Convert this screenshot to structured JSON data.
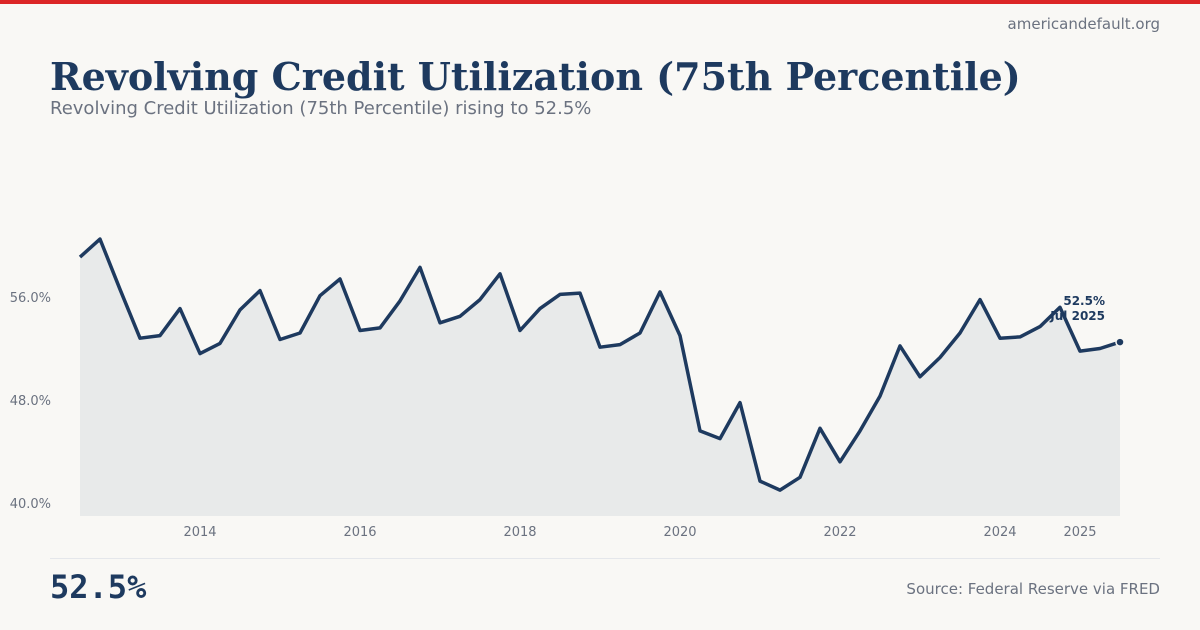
{
  "site": "americandefault.org",
  "title": "Revolving Credit Utilization (75th Percentile)",
  "subtitle": "Revolving Credit Utilization (75th Percentile) rising to 52.5%",
  "headline_value": "52.5%",
  "source": "Source: Federal Reserve via FRED",
  "colors": {
    "accent": "#dc2626",
    "line": "#1e3a5f",
    "fill": "#e8eaea"
  },
  "chart_data": {
    "type": "area",
    "ylim": [
      39,
      62
    ],
    "y_ticks": [
      {
        "value": 40,
        "label": "40.0%"
      },
      {
        "value": 48,
        "label": "48.0%"
      },
      {
        "value": 56,
        "label": "56.0%"
      }
    ],
    "x_ticks": [
      {
        "value": 2014,
        "label": "2014"
      },
      {
        "value": 2016,
        "label": "2016"
      },
      {
        "value": 2018,
        "label": "2018"
      },
      {
        "value": 2020,
        "label": "2020"
      },
      {
        "value": 2022,
        "label": "2022"
      },
      {
        "value": 2024,
        "label": "2024"
      },
      {
        "value": 2025,
        "label": "2025"
      }
    ],
    "x_start": 2012.5,
    "x_step": 0.25,
    "values": [
      59.1,
      60.5,
      56.6,
      52.8,
      53.0,
      55.1,
      51.6,
      52.4,
      55.0,
      56.5,
      52.7,
      53.2,
      56.1,
      57.4,
      53.4,
      53.6,
      55.7,
      58.3,
      54.0,
      54.5,
      55.8,
      57.8,
      53.4,
      55.1,
      56.2,
      56.3,
      52.1,
      52.3,
      53.2,
      56.4,
      53.0,
      45.6,
      45.0,
      47.8,
      41.7,
      41.0,
      42.0,
      45.8,
      43.2,
      45.6,
      48.3,
      52.2,
      49.8,
      51.3,
      53.2,
      55.8,
      52.8,
      52.9,
      53.7,
      55.2,
      51.8,
      52.0,
      52.5
    ],
    "annotation": {
      "value": "52.5%",
      "date": "Jul 2025"
    },
    "grid": false
  }
}
